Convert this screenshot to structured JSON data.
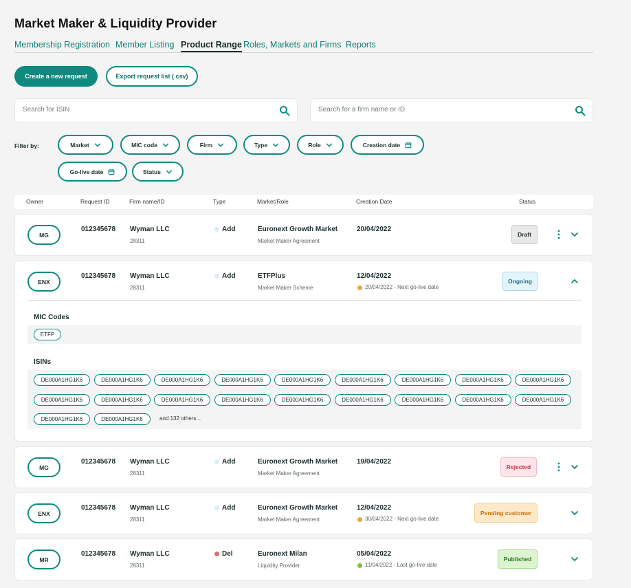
{
  "app_title": "Market Maker & Liquidity Provider",
  "tabs": [
    {
      "label": "Membership Registration"
    },
    {
      "label": "Member Listing"
    },
    {
      "label": "Product Range"
    },
    {
      "label": "Roles, Markets and Firms"
    },
    {
      "label": "Reports"
    }
  ],
  "actions": {
    "create": "Create a new request",
    "export": "Export request list (.csv)"
  },
  "search": {
    "isin_placeholder": "Search for ISIN",
    "firm_placeholder": "Search for a firm name or ID"
  },
  "filters": {
    "label": "Filter by:",
    "items": [
      {
        "label": "Market",
        "icon": "chevron-down-icon"
      },
      {
        "label": "MIC code",
        "icon": "chevron-down-icon"
      },
      {
        "label": "Firm",
        "icon": "chevron-down-icon"
      },
      {
        "label": "Type",
        "icon": "chevron-down-icon"
      },
      {
        "label": "Role",
        "icon": "chevron-down-icon"
      },
      {
        "label": "Creation date",
        "icon": "calendar-icon"
      },
      {
        "label": "Go-live date",
        "icon": "calendar-icon"
      },
      {
        "label": "Status",
        "icon": "chevron-down-icon"
      }
    ]
  },
  "table": {
    "headers": [
      "Owner",
      "Request ID",
      "Firm name/ID",
      "Type",
      "Market/Role",
      "Creation Date",
      "Status"
    ],
    "rows": [
      {
        "owner": "MG",
        "request_id": "012345678",
        "firm": "Wyman LLC",
        "firm_id": "28311",
        "type": "Add",
        "market": "Euronext Growth Market",
        "role": "Market Maker Agreement",
        "created": "20/04/2022",
        "golive": "",
        "status": "Draft"
      },
      {
        "owner": "ENX",
        "request_id": "012345678",
        "firm": "Wyman LLC",
        "firm_id": "28311",
        "type": "Add",
        "market": "ETFPlus",
        "role": "Market Maker Scheme",
        "created": "12/04/2022",
        "golive": "20/04/2022 - Next go-live date",
        "status": "Ongoing"
      },
      {
        "owner": "MG",
        "request_id": "012345678",
        "firm": "Wyman LLC",
        "firm_id": "28311",
        "type": "Add",
        "market": "Euronext Growth Market",
        "role": "Market Maker Agreement",
        "created": "19/04/2022",
        "golive": "",
        "status": "Rejected"
      },
      {
        "owner": "ENX",
        "request_id": "012345678",
        "firm": "Wyman LLC",
        "firm_id": "28311",
        "type": "Add",
        "market": "Euronext Growth Market",
        "role": "Market Maker Agreement",
        "created": "12/04/2022",
        "golive": "30/04/2022 - Next go-live date",
        "status": "Pending customer"
      },
      {
        "owner": "MR",
        "request_id": "012345678",
        "firm": "Wyman LLC",
        "firm_id": "28311",
        "type": "Del",
        "market": "Euronext Milan",
        "role": "Liquidity Provider",
        "created": "05/04/2022",
        "golive": "11/04/2022 - Last go-live date",
        "status": "Published"
      }
    ]
  },
  "details": {
    "mic_title": "MIC Codes",
    "mic_codes": [
      "ETFP"
    ],
    "isin_title": "ISINs",
    "isins": [
      "DE000A1HG1K6",
      "DE000A1HG1K6",
      "DE000A1HG1K6",
      "DE000A1HG1K6",
      "DE000A1HG1K6",
      "DE000A1HG1K6",
      "DE000A1HG1K6",
      "DE000A1HG1K6",
      "DE000A1HG1K6",
      "DE000A1HG1K6",
      "DE000A1HG1K6",
      "DE000A1HG1K6",
      "DE000A1HG1K6",
      "DE000A1HG1K6",
      "DE000A1HG1K6",
      "DE000A1HG1K6",
      "DE000A1HG1K6",
      "DE000A1HG1K6",
      "DE000A1HG1K6",
      "DE000A1HG1K6"
    ],
    "more_text": "and 132 others..."
  },
  "colors": {
    "accent": "#0f8a7f",
    "type_add": "#dcecf5",
    "type_del": "#d9716f",
    "golive_next": "#f2a43a",
    "golive_last": "#7cc63f",
    "status_draft": "#e9e9e9",
    "status_ongoing": "#e4f4fb",
    "status_rejected": "#fde5ea",
    "status_pending": "#fde9c8",
    "status_published": "#dcf4cf"
  }
}
